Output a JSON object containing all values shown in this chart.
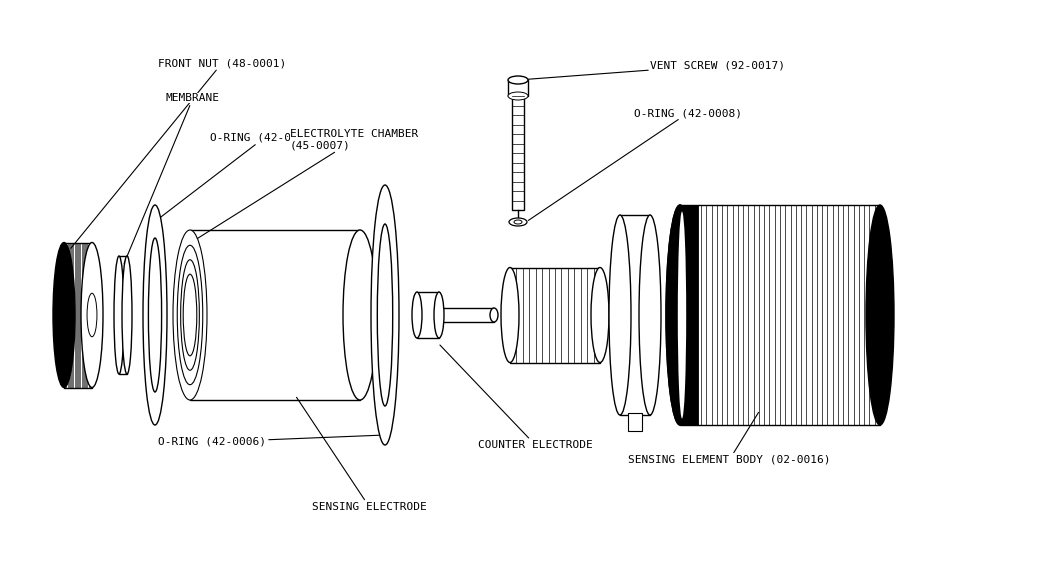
{
  "background_color": "#ffffff",
  "line_color": "#000000",
  "labels": {
    "front_nut": "FRONT NUT (48-0001)",
    "membrane": "MEMBRANE",
    "oring_42_0003": "O-RING (42-0003)",
    "electrolyte_chamber": "ELECTROLYTE CHAMBER\n(45-0007)",
    "oring_42_0006": "O-RING (42-0006)",
    "sensing_electrode": "SENSING ELECTRODE",
    "counter_electrode": "COUNTER ELECTRODE",
    "sensing_element_body": "SENSING ELEMENT BODY (02-0016)",
    "vent_screw": "VENT SCREW (92-0017)",
    "oring_42_0008": "O-RING (42-0008)"
  },
  "font_size": 8.0
}
